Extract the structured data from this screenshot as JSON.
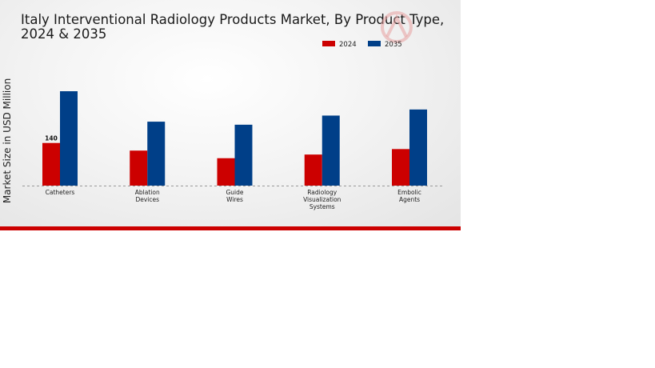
{
  "chart_data": {
    "type": "bar",
    "title": "Italy Interventional Radiology Products Market, By Product Type, 2024 & 2035",
    "xlabel": "",
    "ylabel": "Market Size in USD Million",
    "categories": [
      [
        "Catheters"
      ],
      [
        "Ablation",
        "Devices"
      ],
      [
        "Guide",
        "Wires"
      ],
      [
        "Radiology",
        "Visualization",
        "Systems"
      ],
      [
        "Embolic",
        "Agents"
      ]
    ],
    "series": [
      {
        "name": "2024",
        "color": "#cc0000",
        "values": [
          140,
          115,
          90,
          102,
          120
        ]
      },
      {
        "name": "2035",
        "color": "#003f88",
        "values": [
          310,
          210,
          200,
          230,
          250
        ]
      }
    ],
    "data_labels": [
      {
        "series": "2024",
        "category_index": 0,
        "text": "140"
      }
    ],
    "ylim": [
      0,
      360
    ],
    "grid": false,
    "legend_position": "top-right",
    "accent_color": "#cc0000"
  }
}
